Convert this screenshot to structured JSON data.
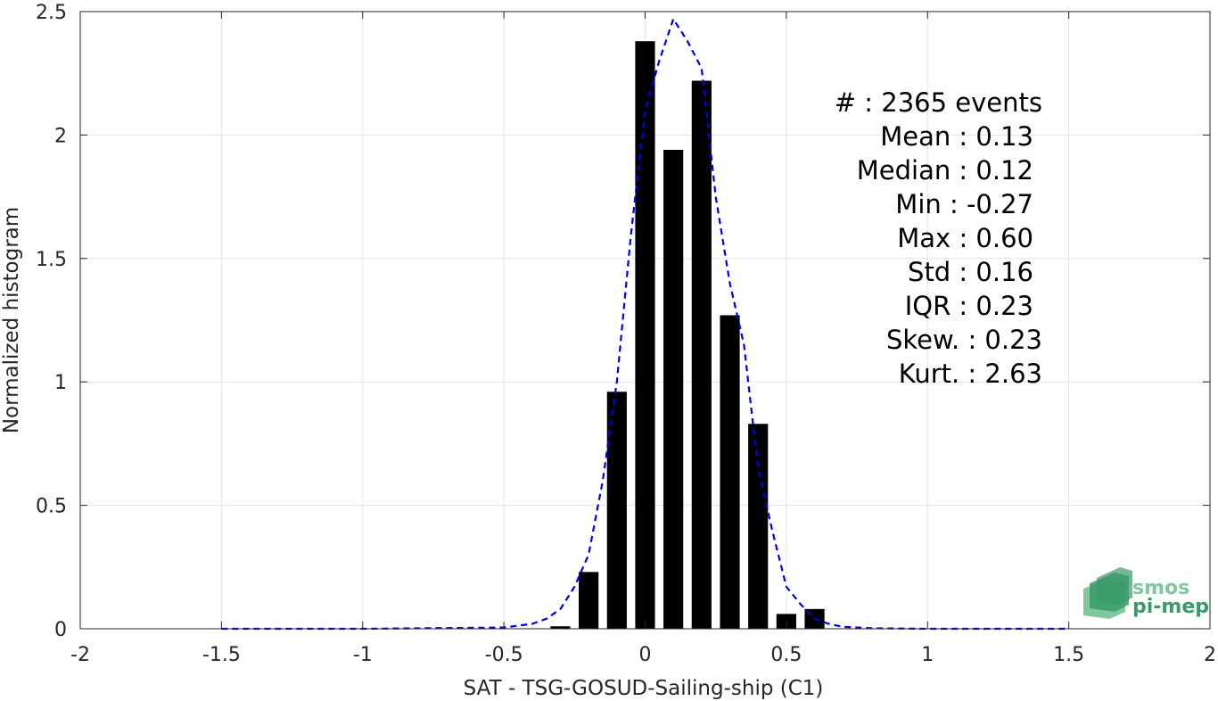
{
  "chart_data": {
    "type": "bar",
    "xlabel": "SAT - TSG-GOSUD-Sailing-ship (C1)",
    "ylabel": "Normalized histogram",
    "xlim": [
      -2,
      2
    ],
    "ylim": [
      0,
      2.5
    ],
    "x_ticks": [
      -2,
      -1.5,
      -1,
      -0.5,
      0,
      0.5,
      1,
      1.5,
      2
    ],
    "x_tick_labels": [
      "-2",
      "-1.5",
      "-1",
      "-0.5",
      "0",
      "0.5",
      "1",
      "1.5",
      "2"
    ],
    "y_ticks": [
      0,
      0.5,
      1,
      1.5,
      2,
      2.5
    ],
    "y_tick_labels": [
      "0",
      "0.5",
      "1",
      "1.5",
      "2",
      "2.5"
    ],
    "grid": true,
    "bar_width": 0.07,
    "bars": {
      "x": [
        -0.3,
        -0.2,
        -0.1,
        0.0,
        0.1,
        0.2,
        0.3,
        0.4,
        0.5,
        0.6
      ],
      "values": [
        0.01,
        0.23,
        0.96,
        2.38,
        1.94,
        2.22,
        1.27,
        0.83,
        0.06,
        0.08
      ],
      "color": "#000000"
    },
    "fit_curve": {
      "style": "dashed",
      "color": "#0000e6",
      "x": [
        -1.5,
        -1.0,
        -0.5,
        -0.4,
        -0.35,
        -0.3,
        -0.25,
        -0.2,
        -0.15,
        -0.1,
        -0.05,
        0.0,
        0.05,
        0.1,
        0.15,
        0.2,
        0.25,
        0.3,
        0.35,
        0.4,
        0.45,
        0.5,
        0.55,
        0.6,
        0.65,
        0.7,
        0.8,
        1.0,
        1.5
      ],
      "y": [
        0.0,
        0.0,
        0.005,
        0.02,
        0.04,
        0.08,
        0.17,
        0.3,
        0.6,
        1.0,
        1.6,
        2.1,
        2.3,
        2.47,
        2.38,
        2.27,
        1.75,
        1.4,
        1.15,
        0.65,
        0.4,
        0.17,
        0.1,
        0.04,
        0.02,
        0.008,
        0.002,
        0.0,
        0.0
      ]
    },
    "stats": [
      "#  : 2365 events",
      "Mean : 0.13",
      "Median : 0.12",
      "Min : -0.27",
      "Max : 0.60",
      "Std : 0.16",
      "IQR : 0.23",
      "Skew. : 0.23",
      "Kurt. : 2.63"
    ]
  },
  "logo": {
    "line1": "smos",
    "line2": "pi-mep",
    "color_dark": "#3a9a6a",
    "color_light": "#7fc79c"
  }
}
